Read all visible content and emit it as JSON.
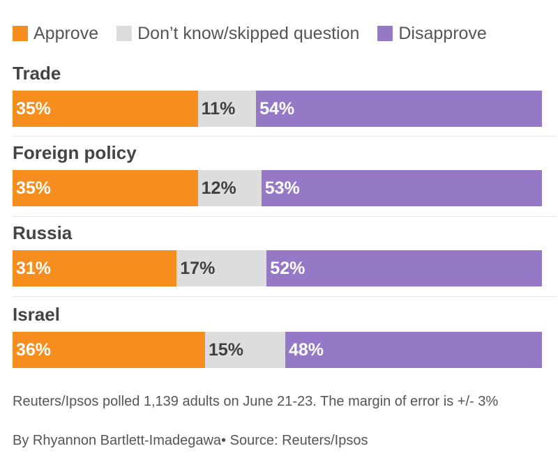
{
  "legend": [
    {
      "label": "Approve",
      "color": "#f68e1f"
    },
    {
      "label": "Don’t know/skipped question",
      "color": "#dddddd"
    },
    {
      "label": "Disapprove",
      "color": "#9579c7"
    }
  ],
  "chart_data": {
    "type": "bar",
    "stacked": true,
    "orientation": "horizontal",
    "categories": [
      "Trade",
      "Foreign policy",
      "Russia",
      "Israel"
    ],
    "series": [
      {
        "name": "Approve",
        "values": [
          35,
          35,
          31,
          36
        ],
        "labels": [
          "35%",
          "35%",
          "31%",
          "36%"
        ],
        "color": "#f68e1f",
        "label_color": "#ffffff"
      },
      {
        "name": "Don’t know/skipped question",
        "values": [
          11,
          12,
          17,
          15
        ],
        "labels": [
          "11%",
          "12%",
          "17%",
          "15%"
        ],
        "color": "#dddddd",
        "label_color": "#404040"
      },
      {
        "name": "Disapprove",
        "values": [
          54,
          53,
          52,
          48
        ],
        "labels": [
          "54%",
          "53%",
          "52%",
          "48%"
        ],
        "color": "#9579c7",
        "label_color": "#ffffff"
      }
    ],
    "xlim": [
      0,
      100
    ],
    "legend_position": "top"
  },
  "footer": {
    "note": "Reuters/Ipsos polled 1,139 adults on June 21-23. The margin of error is +/- 3%",
    "credit": "By Rhyannon Bartlett-Imadegawa• Source: Reuters/Ipsos"
  }
}
